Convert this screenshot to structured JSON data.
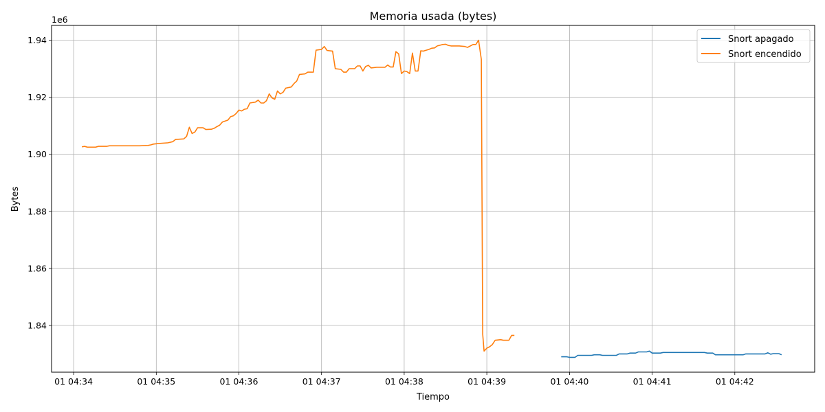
{
  "chart_data": {
    "type": "line",
    "title": "Memoria usada (bytes)",
    "xlabel": "Tiempo",
    "ylabel": "Bytes",
    "y_offset_label": "1e6",
    "x_ticks": [
      {
        "time": "04:34",
        "label": "01 04:34"
      },
      {
        "time": "04:35",
        "label": "01 04:35"
      },
      {
        "time": "04:36",
        "label": "01 04:36"
      },
      {
        "time": "04:37",
        "label": "01 04:37"
      },
      {
        "time": "04:38",
        "label": "01 04:38"
      },
      {
        "time": "04:39",
        "label": "01 04:39"
      },
      {
        "time": "04:40",
        "label": "01 04:40"
      },
      {
        "time": "04:41",
        "label": "01 04:41"
      },
      {
        "time": "04:42",
        "label": "01 04:42"
      }
    ],
    "xlim": [
      "04:33:44",
      "04:42:58"
    ],
    "y_ticks": [
      {
        "value": 1.84,
        "label": "1.84"
      },
      {
        "value": 1.86,
        "label": "1.86"
      },
      {
        "value": 1.88,
        "label": "1.88"
      },
      {
        "value": 1.9,
        "label": "1.90"
      },
      {
        "value": 1.92,
        "label": "1.92"
      },
      {
        "value": 1.94,
        "label": "1.94"
      }
    ],
    "ylim": [
      1.8236,
      1.9452
    ],
    "y_scale_note": "values x 1e6",
    "grid": true,
    "legend_position": "top-right",
    "series": [
      {
        "name": "Snort apagado",
        "color": "#1f77b4",
        "points": [
          [
            "04:39:54",
            1.829
          ],
          [
            "04:39:58",
            1.829
          ],
          [
            "04:40:00",
            1.8288
          ],
          [
            "04:40:04",
            1.8288
          ],
          [
            "04:40:06",
            1.8295
          ],
          [
            "04:40:12",
            1.8295
          ],
          [
            "04:40:16",
            1.8295
          ],
          [
            "04:40:18",
            1.8297
          ],
          [
            "04:40:22",
            1.8297
          ],
          [
            "04:40:24",
            1.8295
          ],
          [
            "04:40:34",
            1.8295
          ],
          [
            "04:40:36",
            1.83
          ],
          [
            "04:40:42",
            1.83
          ],
          [
            "04:40:44",
            1.8303
          ],
          [
            "04:40:48",
            1.8303
          ],
          [
            "04:40:50",
            1.8307
          ],
          [
            "04:40:56",
            1.8307
          ],
          [
            "04:40:58",
            1.831
          ],
          [
            "04:41:00",
            1.8303
          ],
          [
            "04:41:06",
            1.8303
          ],
          [
            "04:41:08",
            1.8305
          ],
          [
            "04:41:38",
            1.8305
          ],
          [
            "04:41:40",
            1.8303
          ],
          [
            "04:41:44",
            1.8303
          ],
          [
            "04:41:46",
            1.8297
          ],
          [
            "04:42:06",
            1.8297
          ],
          [
            "04:42:08",
            1.83
          ],
          [
            "04:42:22",
            1.83
          ],
          [
            "04:42:24",
            1.8304
          ],
          [
            "04:42:26",
            1.8299
          ],
          [
            "04:42:28",
            1.8301
          ],
          [
            "04:42:32",
            1.8301
          ],
          [
            "04:42:34",
            1.8297
          ]
        ]
      },
      {
        "name": "Snort encendido",
        "color": "#ff7f0e",
        "points": [
          [
            "04:34:06",
            1.9026
          ],
          [
            "04:34:08",
            1.9028
          ],
          [
            "04:34:10",
            1.9025
          ],
          [
            "04:34:16",
            1.9025
          ],
          [
            "04:34:18",
            1.9028
          ],
          [
            "04:34:24",
            1.9028
          ],
          [
            "04:34:26",
            1.903
          ],
          [
            "04:34:48",
            1.903
          ],
          [
            "04:34:54",
            1.9031
          ],
          [
            "04:34:56",
            1.9033
          ],
          [
            "04:34:58",
            1.9036
          ],
          [
            "04:35:02",
            1.9038
          ],
          [
            "04:35:08",
            1.904
          ],
          [
            "04:35:12",
            1.9044
          ],
          [
            "04:35:14",
            1.9052
          ],
          [
            "04:35:20",
            1.9054
          ],
          [
            "04:35:22",
            1.9063
          ],
          [
            "04:35:24",
            1.9095
          ],
          [
            "04:35:26",
            1.9073
          ],
          [
            "04:35:28",
            1.9078
          ],
          [
            "04:35:30",
            1.9093
          ],
          [
            "04:35:34",
            1.9093
          ],
          [
            "04:35:36",
            1.9087
          ],
          [
            "04:35:40",
            1.9088
          ],
          [
            "04:35:42",
            1.9091
          ],
          [
            "04:35:44",
            1.9097
          ],
          [
            "04:35:46",
            1.9102
          ],
          [
            "04:35:48",
            1.9113
          ],
          [
            "04:35:52",
            1.912
          ],
          [
            "04:35:54",
            1.9132
          ],
          [
            "04:35:56",
            1.9135
          ],
          [
            "04:35:58",
            1.9143
          ],
          [
            "04:36:00",
            1.9155
          ],
          [
            "04:36:02",
            1.9152
          ],
          [
            "04:36:04",
            1.9158
          ],
          [
            "04:36:06",
            1.916
          ],
          [
            "04:36:08",
            1.918
          ],
          [
            "04:36:12",
            1.9183
          ],
          [
            "04:36:14",
            1.919
          ],
          [
            "04:36:16",
            1.918
          ],
          [
            "04:36:18",
            1.918
          ],
          [
            "04:36:20",
            1.9188
          ],
          [
            "04:36:22",
            1.9212
          ],
          [
            "04:36:24",
            1.9198
          ],
          [
            "04:36:26",
            1.9193
          ],
          [
            "04:36:28",
            1.9222
          ],
          [
            "04:36:30",
            1.9212
          ],
          [
            "04:36:32",
            1.9217
          ],
          [
            "04:36:34",
            1.9232
          ],
          [
            "04:36:38",
            1.9236
          ],
          [
            "04:36:40",
            1.9248
          ],
          [
            "04:36:42",
            1.9257
          ],
          [
            "04:36:44",
            1.928
          ],
          [
            "04:36:48",
            1.9282
          ],
          [
            "04:36:50",
            1.9288
          ],
          [
            "04:36:54",
            1.9288
          ],
          [
            "04:36:56",
            1.9365
          ],
          [
            "04:37:00",
            1.9368
          ],
          [
            "04:37:02",
            1.9378
          ],
          [
            "04:37:04",
            1.9364
          ],
          [
            "04:37:08",
            1.9362
          ],
          [
            "04:37:10",
            1.93
          ],
          [
            "04:37:14",
            1.9298
          ],
          [
            "04:37:16",
            1.9288
          ],
          [
            "04:37:18",
            1.9288
          ],
          [
            "04:37:20",
            1.93
          ],
          [
            "04:37:24",
            1.93
          ],
          [
            "04:37:26",
            1.931
          ],
          [
            "04:37:28",
            1.931
          ],
          [
            "04:37:30",
            1.9292
          ],
          [
            "04:37:32",
            1.9308
          ],
          [
            "04:37:34",
            1.9312
          ],
          [
            "04:37:36",
            1.9303
          ],
          [
            "04:37:40",
            1.9305
          ],
          [
            "04:37:46",
            1.9305
          ],
          [
            "04:37:48",
            1.9313
          ],
          [
            "04:37:50",
            1.9306
          ],
          [
            "04:37:52",
            1.9306
          ],
          [
            "04:37:54",
            1.936
          ],
          [
            "04:37:56",
            1.9352
          ],
          [
            "04:37:58",
            1.9283
          ],
          [
            "04:38:00",
            1.9292
          ],
          [
            "04:38:02",
            1.929
          ],
          [
            "04:38:04",
            1.9283
          ],
          [
            "04:38:06",
            1.9355
          ],
          [
            "04:38:08",
            1.9292
          ],
          [
            "04:38:10",
            1.9292
          ],
          [
            "04:38:12",
            1.9363
          ],
          [
            "04:38:14",
            1.9362
          ],
          [
            "04:38:18",
            1.9368
          ],
          [
            "04:38:20",
            1.9372
          ],
          [
            "04:38:22",
            1.9373
          ],
          [
            "04:38:24",
            1.938
          ],
          [
            "04:38:28",
            1.9385
          ],
          [
            "04:38:30",
            1.9386
          ],
          [
            "04:38:32",
            1.9382
          ],
          [
            "04:38:34",
            1.938
          ],
          [
            "04:38:40",
            1.938
          ],
          [
            "04:38:44",
            1.9378
          ],
          [
            "04:38:46",
            1.9375
          ],
          [
            "04:38:50",
            1.9385
          ],
          [
            "04:38:52",
            1.9385
          ],
          [
            "04:38:54",
            1.94
          ],
          [
            "04:38:56",
            1.9333
          ],
          [
            "04:38:57",
            1.837
          ],
          [
            "04:38:58",
            1.831
          ],
          [
            "04:39:00",
            1.832
          ],
          [
            "04:39:02",
            1.8325
          ],
          [
            "04:39:04",
            1.8333
          ],
          [
            "04:39:06",
            1.8348
          ],
          [
            "04:39:10",
            1.835
          ],
          [
            "04:39:12",
            1.8348
          ],
          [
            "04:39:16",
            1.8348
          ],
          [
            "04:39:18",
            1.8365
          ],
          [
            "04:39:20",
            1.8365
          ]
        ]
      }
    ]
  }
}
